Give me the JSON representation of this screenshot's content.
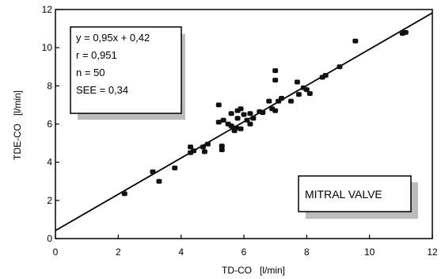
{
  "chart_data": {
    "type": "scatter",
    "xlabel": "TD-CO   [l/min]",
    "ylabel": "TDE-CO   [l/min]",
    "xlim": [
      0,
      12
    ],
    "ylim": [
      0,
      12
    ],
    "x_ticks": [
      0,
      2,
      4,
      6,
      8,
      10,
      12
    ],
    "y_ticks": [
      0,
      2,
      4,
      6,
      8,
      10,
      12
    ],
    "grid": false,
    "stats": {
      "equation": "y = 0,95x + 0,42",
      "r": "r = 0,951",
      "n": "n = 50",
      "see": "SEE = 0,34"
    },
    "annotation": "MITRAL VALVE",
    "regression": {
      "slope": 0.95,
      "intercept": 0.42
    },
    "points": [
      [
        2.2,
        2.35
      ],
      [
        3.1,
        3.5
      ],
      [
        3.3,
        3.0
      ],
      [
        3.8,
        3.7
      ],
      [
        4.3,
        4.8
      ],
      [
        4.3,
        4.5
      ],
      [
        4.4,
        4.6
      ],
      [
        4.7,
        4.8
      ],
      [
        4.75,
        4.55
      ],
      [
        5.2,
        7.0
      ],
      [
        5.2,
        6.1
      ],
      [
        5.3,
        4.85
      ],
      [
        5.3,
        4.65
      ],
      [
        5.35,
        6.2
      ],
      [
        5.5,
        6.0
      ],
      [
        5.6,
        6.55
      ],
      [
        5.6,
        5.9
      ],
      [
        5.7,
        5.65
      ],
      [
        5.75,
        5.8
      ],
      [
        5.8,
        6.7
      ],
      [
        5.8,
        6.3
      ],
      [
        5.9,
        6.8
      ],
      [
        6.0,
        6.5
      ],
      [
        6.1,
        6.2
      ],
      [
        6.2,
        6.0
      ],
      [
        6.3,
        6.3
      ],
      [
        6.5,
        6.65
      ],
      [
        6.6,
        6.6
      ],
      [
        6.8,
        7.2
      ],
      [
        6.9,
        6.8
      ],
      [
        7.0,
        8.8
      ],
      [
        7.0,
        8.3
      ],
      [
        7.1,
        7.2
      ],
      [
        7.2,
        7.35
      ],
      [
        7.5,
        7.2
      ],
      [
        7.7,
        8.2
      ],
      [
        7.75,
        7.55
      ],
      [
        7.9,
        7.9
      ],
      [
        8.0,
        7.8
      ],
      [
        8.1,
        7.6
      ],
      [
        8.5,
        8.45
      ],
      [
        8.6,
        8.55
      ],
      [
        9.05,
        9.0
      ],
      [
        9.55,
        10.35
      ],
      [
        11.05,
        10.75
      ],
      [
        11.15,
        10.8
      ],
      [
        6.2,
        6.55
      ],
      [
        5.9,
        5.75
      ],
      [
        7.0,
        6.7
      ],
      [
        4.85,
        4.95
      ]
    ]
  }
}
